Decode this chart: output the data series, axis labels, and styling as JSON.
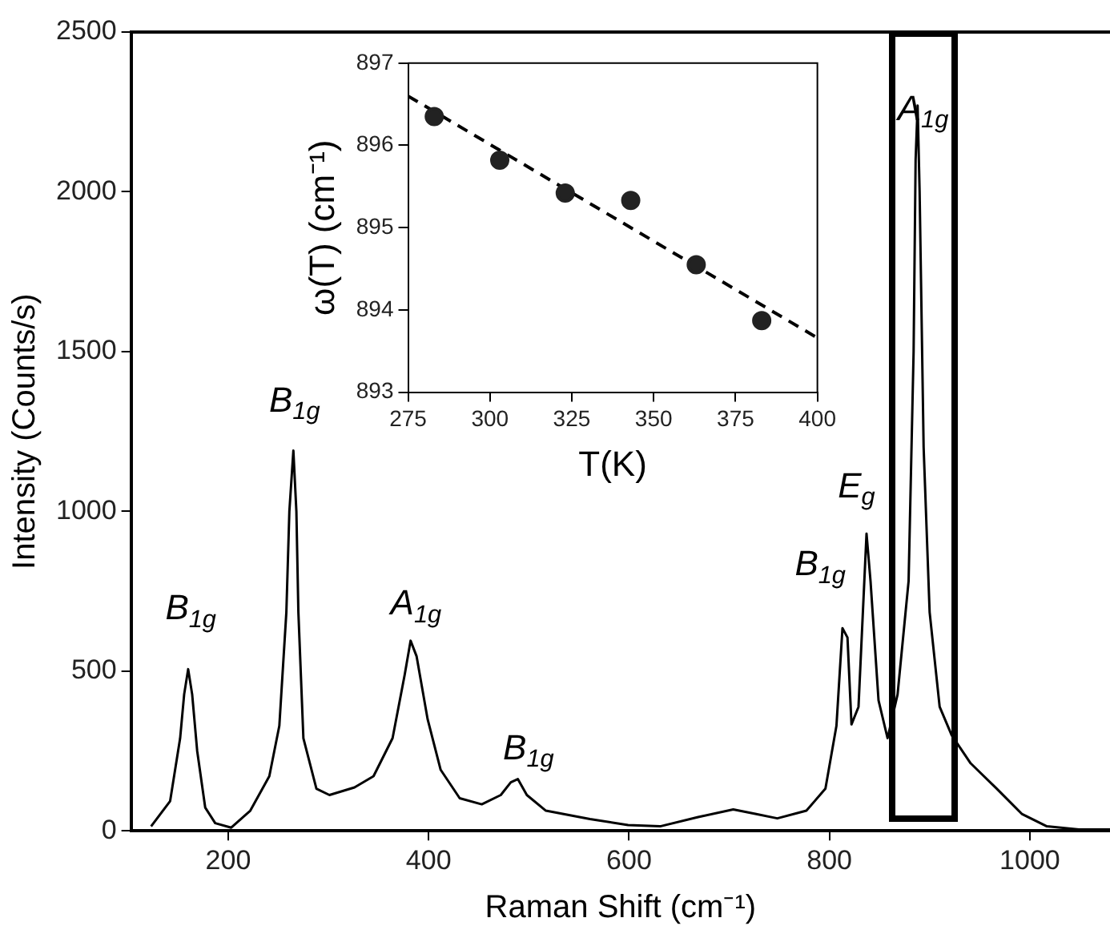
{
  "chart_data": [
    {
      "type": "line",
      "xlabel": "Raman Shift (cm⁻¹)",
      "ylabel": "Intensity (Counts/s)",
      "xlim": [
        103,
        1080
      ],
      "ylim": [
        0,
        2500
      ],
      "xticks": [
        200,
        400,
        600,
        800,
        1000
      ],
      "yticks": [
        0,
        500,
        1000,
        1500,
        2000,
        2500
      ],
      "marker": "none",
      "line_style": "solid",
      "legend": false,
      "grid": false,
      "series": [
        {
          "color": "#000000",
          "x": [
            123,
            142,
            152,
            156,
            160,
            164,
            169,
            177,
            187,
            203,
            222,
            241,
            251,
            258,
            261,
            265,
            268,
            270,
            275,
            288,
            301,
            326,
            345,
            364,
            376,
            382,
            388,
            399,
            412,
            431,
            453,
            472,
            482,
            489,
            498,
            517,
            561,
            599,
            631,
            669,
            704,
            726,
            748,
            777,
            796,
            807,
            813,
            818,
            822,
            829,
            837,
            841,
            849,
            858,
            868,
            879,
            884,
            886,
            888,
            890,
            894,
            900,
            910,
            922,
            941,
            967,
            992,
            1017,
            1049,
            1080
          ],
          "values": [
            14,
            93,
            290,
            427,
            506,
            427,
            250,
            73,
            24,
            10,
            63,
            171,
            329,
            684,
            1000,
            1190,
            1000,
            684,
            290,
            132,
            112,
            136,
            171,
            290,
            487,
            595,
            546,
            349,
            191,
            102,
            83,
            112,
            152,
            162,
            112,
            63,
            37,
            18,
            14,
            43,
            67,
            53,
            39,
            63,
            132,
            329,
            634,
            605,
            333,
            388,
            930,
            782,
            408,
            290,
            427,
            782,
            1500,
            2100,
            2270,
            2000,
            1200,
            684,
            388,
            299,
            211,
            132,
            53,
            14,
            4,
            4
          ]
        }
      ],
      "annotations": [
        "B$_{1g}$",
        "B$_{1g}$",
        "A$_{1g}$",
        "B$_{1g}$",
        "B$_{1g}$",
        "E$_{g}$",
        "A$_{1g}$"
      ]
    },
    {
      "type": "scatter",
      "xlabel": "T(K)",
      "ylabel": "ω(T) (cm⁻¹)",
      "xlim": [
        275,
        400
      ],
      "ylim": [
        893,
        897
      ],
      "xticks": [
        275,
        300,
        325,
        350,
        375,
        400
      ],
      "yticks": [
        893,
        894,
        895,
        896,
        897
      ],
      "legend": false,
      "grid": false,
      "series": [
        {
          "color": "#222222",
          "marker": "circle",
          "x": [
            283,
            303,
            323,
            343,
            363,
            383
          ],
          "values": [
            896.35,
            895.82,
            895.42,
            895.33,
            894.55,
            893.87
          ]
        },
        {
          "type": "line",
          "color": "#000000",
          "marker": "none",
          "line_style": "dashed",
          "x": [
            275,
            400
          ],
          "values": [
            896.6,
            893.66
          ]
        }
      ]
    }
  ]
}
